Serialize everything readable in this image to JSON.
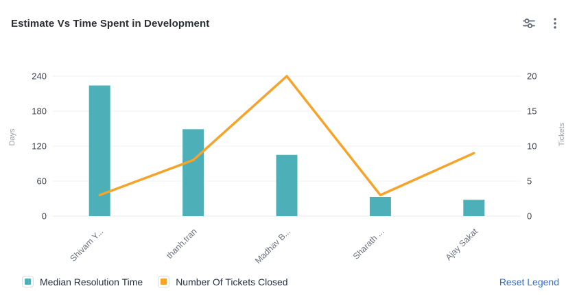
{
  "card": {
    "title": "Estimate Vs Time Spent in Development"
  },
  "header": {
    "icons": [
      "sliders-icon",
      "kebab-menu-icon"
    ]
  },
  "colors": {
    "bar": "#4DB0B8",
    "line": "#F7A228",
    "grid": "#F1F2F4",
    "axis_line": "#E7E9EC",
    "tick_text": "#3F4450",
    "unit_text": "#9AA1AC",
    "category_text": "#6B7280",
    "icon": "#5E6673",
    "link": "#2E6BD8"
  },
  "chart_data": {
    "type": "bar+line",
    "title": "Estimate Vs Time Spent in Development",
    "categories": [
      "Shivam Y...",
      "thanh.tran",
      "Madhav B...",
      "Sharath ...",
      "Ajay Sakat"
    ],
    "series": [
      {
        "name": "Median Resolution Time",
        "type": "bar",
        "axis": "left",
        "color": "#4DB0B8",
        "values": [
          224,
          149,
          105,
          33,
          28
        ]
      },
      {
        "name": "Number Of Tickets Closed",
        "type": "line",
        "axis": "right",
        "color": "#F7A228",
        "values": [
          3,
          8,
          20,
          3,
          9
        ]
      }
    ],
    "left_axis": {
      "label": "Days",
      "ticks": [
        0,
        60,
        120,
        180,
        240
      ],
      "max": 240
    },
    "right_axis": {
      "label": "Tickets",
      "ticks": [
        0,
        5,
        10,
        15,
        20
      ],
      "max": 20
    },
    "grid": true,
    "legend_position": "bottom",
    "x_label_rotation": -45
  },
  "legend": {
    "items": [
      {
        "label": "Median Resolution Time",
        "color": "#4DB0B8"
      },
      {
        "label": "Number Of Tickets Closed",
        "color": "#F7A228"
      }
    ],
    "reset_label": "Reset Legend"
  }
}
